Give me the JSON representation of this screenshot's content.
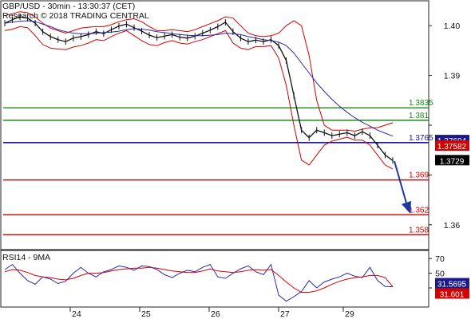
{
  "header": {
    "line1": "GBP/USD - 30min - 13:30:37 (CET)",
    "line2": "Research © 2018 TRADING CENTRAL"
  },
  "rsi_label": "RSI14 - 9MA",
  "colors": {
    "price": "#111111",
    "bollinger": "#d40000",
    "moving_average": "#2a2ab0",
    "resistance": "#1a8a1a",
    "pivot": "#1a1a9a",
    "support": "#d40000",
    "rsi": "#2a2ab0",
    "rsi_ma": "#d40000",
    "arrow": "#1a3aa0"
  },
  "chart_data": [
    {
      "type": "line",
      "panel": "price",
      "x_axis_type": "date",
      "xtick_labels": [
        "24",
        "25",
        "26",
        "27",
        "29"
      ],
      "ylim": [
        1.355,
        1.405
      ],
      "yticks": [
        1.36,
        1.37,
        1.38,
        1.39,
        1.4
      ],
      "ytick_labels": [
        "1.36",
        "",
        "",
        "1.39",
        "1.40"
      ],
      "levels": [
        {
          "value": 1.3835,
          "label": "1.3835",
          "role": "resistance"
        },
        {
          "value": 1.381,
          "label": "1.381",
          "role": "resistance"
        },
        {
          "value": 1.3765,
          "label": "1.3765",
          "role": "pivot"
        },
        {
          "value": 1.369,
          "label": "1.369",
          "role": "support"
        },
        {
          "value": 1.362,
          "label": "1.362",
          "role": "support"
        },
        {
          "value": 1.358,
          "label": "1.358",
          "role": "support"
        }
      ],
      "price_tags": [
        {
          "value": 1.37694,
          "label": "1.37694",
          "style": "navy"
        },
        {
          "value": 1.37582,
          "label": "1.37582",
          "style": "red"
        },
        {
          "value": 1.3729,
          "label": "1.3729",
          "style": "black"
        }
      ],
      "series": [
        {
          "role": "price",
          "values": [
            1.4005,
            1.4012,
            1.4018,
            1.4015,
            1.4005,
            1.3988,
            1.3978,
            1.3972,
            1.3968,
            1.3975,
            1.3978,
            1.3982,
            1.3988,
            1.3984,
            1.3992,
            1.3999,
            1.4003,
            1.3996,
            1.3989,
            1.3981,
            1.3976,
            1.3979,
            1.3982,
            1.3977,
            1.3975,
            1.3979,
            1.3985,
            1.3991,
            1.3998,
            1.4007,
            1.3988,
            1.3975,
            1.3968,
            1.3971,
            1.3968,
            1.3972,
            1.396,
            1.393,
            1.386,
            1.379,
            1.3775,
            1.379,
            1.3785,
            1.3779,
            1.3782,
            1.3785,
            1.3779,
            1.3787,
            1.3779,
            1.376,
            1.374,
            1.3729
          ]
        },
        {
          "role": "bollinger_upper",
          "values": [
            1.402,
            1.4024,
            1.4028,
            1.4026,
            1.4018,
            1.4005,
            1.3995,
            1.399,
            1.3985,
            1.399,
            1.3995,
            1.3997,
            1.3998,
            1.3998,
            1.4002,
            1.4008,
            1.4012,
            1.4014,
            1.4008,
            1.3998,
            1.399,
            1.399,
            1.3992,
            1.399,
            1.3988,
            1.3992,
            1.3998,
            1.4004,
            1.401,
            1.4018,
            1.4015,
            1.4,
            1.3985,
            1.398,
            1.3978,
            1.398,
            1.3985,
            1.4,
            1.401,
            1.4,
            1.394,
            1.385,
            1.38,
            1.379,
            1.379,
            1.379,
            1.3788,
            1.3792,
            1.3795,
            1.3795,
            1.38,
            1.3805
          ]
        },
        {
          "role": "bollinger_lower",
          "values": [
            1.399,
            1.3993,
            1.3998,
            1.3996,
            1.398,
            1.3962,
            1.3955,
            1.3953,
            1.3952,
            1.3957,
            1.396,
            1.3965,
            1.3972,
            1.397,
            1.3978,
            1.3985,
            1.399,
            1.398,
            1.397,
            1.3962,
            1.396,
            1.3966,
            1.397,
            1.3965,
            1.3963,
            1.3968,
            1.3972,
            1.3978,
            1.3984,
            1.399,
            1.3965,
            1.3955,
            1.3952,
            1.3958,
            1.3958,
            1.396,
            1.3935,
            1.388,
            1.38,
            1.373,
            1.372,
            1.374,
            1.376,
            1.3768,
            1.3772,
            1.3776,
            1.377,
            1.377,
            1.376,
            1.374,
            1.372,
            1.3712
          ]
        },
        {
          "role": "moving_average",
          "values": [
            1.4005,
            1.4007,
            1.4009,
            1.401,
            1.4008,
            1.4003,
            1.3998,
            1.3992,
            1.3988,
            1.3985,
            1.3984,
            1.3984,
            1.3985,
            1.3986,
            1.3987,
            1.3989,
            1.3992,
            1.3994,
            1.3993,
            1.3991,
            1.3988,
            1.3986,
            1.3984,
            1.3982,
            1.3981,
            1.398,
            1.398,
            1.3981,
            1.3982,
            1.3985,
            1.3984,
            1.3982,
            1.3978,
            1.3975,
            1.3972,
            1.397,
            1.3967,
            1.396,
            1.3945,
            1.3925,
            1.3905,
            1.3885,
            1.3868,
            1.3852,
            1.3838,
            1.3826,
            1.3815,
            1.3806,
            1.3798,
            1.379,
            1.3784,
            1.3778
          ]
        }
      ]
    },
    {
      "type": "line",
      "panel": "rsi",
      "ylim": [
        5,
        80
      ],
      "yticks": [
        30,
        50,
        70
      ],
      "ytick_labels": [
        "30",
        "50",
        "70"
      ],
      "value_tags": [
        {
          "value": 31.5695,
          "label": "31.5695",
          "style": "navy"
        },
        {
          "value": 31.601,
          "label": "31.601",
          "style": "red"
        }
      ],
      "series": [
        {
          "role": "rsi",
          "values": [
            55,
            62,
            50,
            40,
            35,
            45,
            42,
            36,
            39,
            50,
            58,
            50,
            45,
            52,
            55,
            60,
            58,
            54,
            60,
            59,
            55,
            48,
            44,
            50,
            54,
            52,
            58,
            62,
            45,
            43,
            50,
            56,
            60,
            52,
            48,
            62,
            20,
            12,
            18,
            25,
            40,
            30,
            38,
            42,
            45,
            50,
            46,
            44,
            58,
            40,
            32,
            31.5695
          ]
        },
        {
          "role": "rsi_ma",
          "values": [
            52,
            55,
            54,
            51,
            47,
            45,
            44,
            42,
            41,
            43,
            47,
            50,
            50,
            51,
            53,
            55,
            56,
            57,
            57,
            58,
            57,
            55,
            53,
            52,
            51,
            51,
            53,
            56,
            53,
            52,
            51,
            52,
            54,
            55,
            54,
            55,
            47,
            38,
            30,
            24,
            24,
            26,
            30,
            35,
            39,
            42,
            44,
            45,
            47,
            47,
            44,
            31.601
          ]
        }
      ]
    }
  ]
}
